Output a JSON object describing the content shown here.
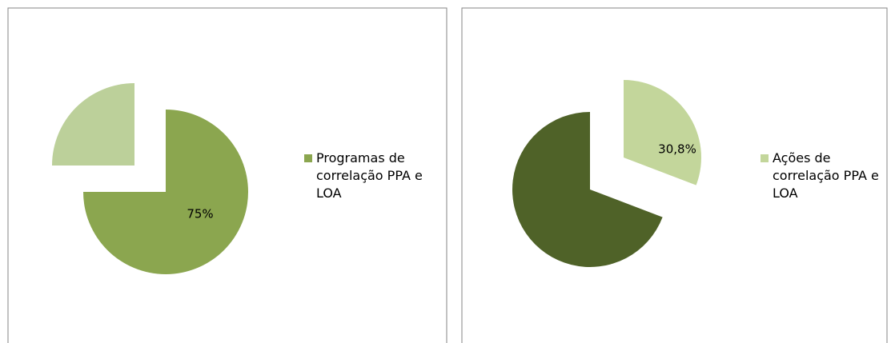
{
  "chart_data": [
    {
      "type": "pie",
      "categories": [
        "Programas de correlação PPA e LOA",
        null
      ],
      "values": [
        75,
        25
      ],
      "value_labels": [
        "75%",
        null
      ],
      "colors": [
        "#8ba64f",
        "#bcd09a"
      ]
    },
    {
      "type": "pie",
      "categories": [
        "Ações de correlação PPA e LOA",
        null
      ],
      "values": [
        30.8,
        69.2
      ],
      "value_labels": [
        "30,8%",
        null
      ],
      "colors": [
        "#c3d69b",
        "#4f6228"
      ]
    }
  ]
}
